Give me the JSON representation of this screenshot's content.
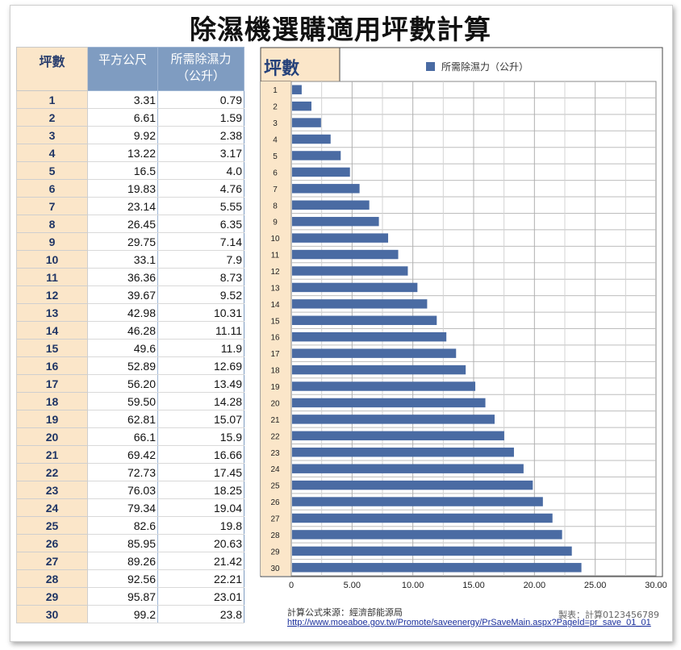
{
  "title": "除濕機選購適用坪數計算",
  "table": {
    "headers": [
      "坪數",
      "平方公尺",
      "所需除濕力\n（公升）"
    ],
    "rows": [
      [
        "1",
        "3.31",
        "0.79"
      ],
      [
        "2",
        "6.61",
        "1.59"
      ],
      [
        "3",
        "9.92",
        "2.38"
      ],
      [
        "4",
        "13.22",
        "3.17"
      ],
      [
        "5",
        "16.5",
        "4.0"
      ],
      [
        "6",
        "19.83",
        "4.76"
      ],
      [
        "7",
        "23.14",
        "5.55"
      ],
      [
        "8",
        "26.45",
        "6.35"
      ],
      [
        "9",
        "29.75",
        "7.14"
      ],
      [
        "10",
        "33.1",
        "7.9"
      ],
      [
        "11",
        "36.36",
        "8.73"
      ],
      [
        "12",
        "39.67",
        "9.52"
      ],
      [
        "13",
        "42.98",
        "10.31"
      ],
      [
        "14",
        "46.28",
        "11.11"
      ],
      [
        "15",
        "49.6",
        "11.9"
      ],
      [
        "16",
        "52.89",
        "12.69"
      ],
      [
        "17",
        "56.20",
        "13.49"
      ],
      [
        "18",
        "59.50",
        "14.28"
      ],
      [
        "19",
        "62.81",
        "15.07"
      ],
      [
        "20",
        "66.1",
        "15.9"
      ],
      [
        "21",
        "69.42",
        "16.66"
      ],
      [
        "22",
        "72.73",
        "17.45"
      ],
      [
        "23",
        "76.03",
        "18.25"
      ],
      [
        "24",
        "79.34",
        "19.04"
      ],
      [
        "25",
        "82.6",
        "19.8"
      ],
      [
        "26",
        "85.95",
        "20.63"
      ],
      [
        "27",
        "89.26",
        "21.42"
      ],
      [
        "28",
        "92.56",
        "22.21"
      ],
      [
        "29",
        "95.87",
        "23.01"
      ],
      [
        "30",
        "99.2",
        "23.8"
      ]
    ]
  },
  "chart_data": {
    "type": "bar",
    "orientation": "horizontal",
    "title": "",
    "ylabel": "坪數",
    "xlabel": "",
    "categories": [
      "1",
      "2",
      "3",
      "4",
      "5",
      "6",
      "7",
      "8",
      "9",
      "10",
      "11",
      "12",
      "13",
      "14",
      "15",
      "16",
      "17",
      "18",
      "19",
      "20",
      "21",
      "22",
      "23",
      "24",
      "25",
      "26",
      "27",
      "28",
      "29",
      "30"
    ],
    "series": [
      {
        "name": "所需除濕力（公升）",
        "color": "#4a6ba3",
        "values": [
          0.79,
          1.59,
          2.38,
          3.17,
          4.0,
          4.76,
          5.55,
          6.35,
          7.14,
          7.9,
          8.73,
          9.52,
          10.31,
          11.11,
          11.9,
          12.69,
          13.49,
          14.28,
          15.07,
          15.9,
          16.66,
          17.45,
          18.25,
          19.04,
          19.8,
          20.63,
          21.42,
          22.21,
          23.01,
          23.8
        ]
      }
    ],
    "xlim": [
      0,
      30
    ],
    "xticks": [
      0,
      5,
      10,
      15,
      20,
      25,
      30
    ],
    "xtick_labels": [
      "0",
      "5.00",
      "10.00",
      "15.00",
      "20.00",
      "25.00",
      "30.00"
    ],
    "grid": true,
    "legend": "top"
  },
  "credits": {
    "source_label": "計算公式來源：經濟部能源局",
    "maker": "製表：計算0123456789",
    "url": "http://www.moeaboe.gov.tw/Promote/saveenergy/PrSaveMain.aspx?PageId=pr_save_01_01"
  },
  "colors": {
    "bar": "#4a6ba3",
    "header_blue": "#7f9cc1",
    "header_cream": "#fbe6c9"
  }
}
